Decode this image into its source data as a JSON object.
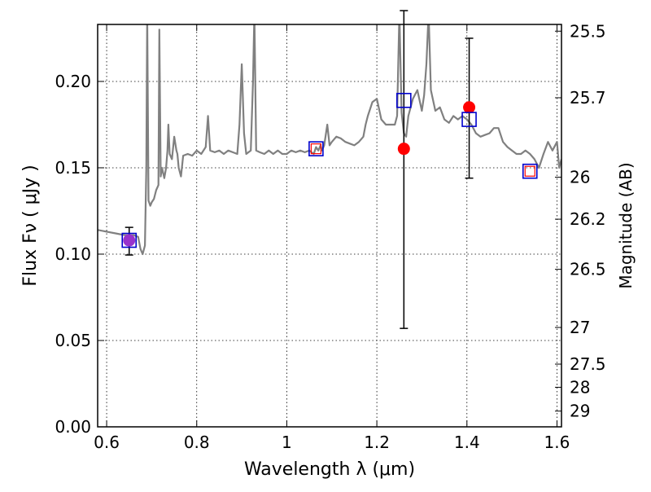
{
  "chart_data": {
    "type": "line",
    "xlabel": "Wavelength  λ (μm)",
    "ylabel": "Flux  Fν  ( μJy )",
    "y2label": "Magnitude (AB)",
    "xlim": [
      0.58,
      1.61
    ],
    "ylim": [
      0.0,
      0.233
    ],
    "grid": true,
    "x_ticks": [
      0.6,
      0.8,
      1.0,
      1.2,
      1.4,
      1.6
    ],
    "x_tick_labels": [
      "0.6",
      "0.8",
      "1",
      "1.2",
      "1.4",
      "1.6"
    ],
    "y_ticks": [
      0.0,
      0.05,
      0.1,
      0.15,
      0.2
    ],
    "y_tick_labels": [
      "0.00",
      "0.05",
      "0.10",
      "0.15",
      "0.20"
    ],
    "mag_ticks": [
      {
        "mag": 25.5,
        "label": "25.5"
      },
      {
        "mag": 25.7,
        "label": "25.7"
      },
      {
        "mag": 26.0,
        "label": "26"
      },
      {
        "mag": 26.2,
        "label": "26.2"
      },
      {
        "mag": 26.5,
        "label": "26.5"
      },
      {
        "mag": 27.0,
        "label": "27"
      },
      {
        "mag": 27.5,
        "label": "27.5"
      },
      {
        "mag": 28.0,
        "label": "28"
      },
      {
        "mag": 29.0,
        "label": "29"
      }
    ],
    "series": [
      {
        "kind": "model_spectrum",
        "color": "#808080",
        "x": [
          0.58,
          0.6,
          0.62,
          0.64,
          0.66,
          0.67,
          0.675,
          0.68,
          0.685,
          0.688,
          0.69,
          0.693,
          0.697,
          0.7,
          0.705,
          0.71,
          0.715,
          0.717,
          0.72,
          0.723,
          0.728,
          0.732,
          0.735,
          0.737,
          0.74,
          0.745,
          0.75,
          0.755,
          0.757,
          0.76,
          0.765,
          0.77,
          0.78,
          0.79,
          0.8,
          0.81,
          0.82,
          0.825,
          0.83,
          0.84,
          0.85,
          0.86,
          0.87,
          0.88,
          0.89,
          0.895,
          0.9,
          0.905,
          0.91,
          0.92,
          0.925,
          0.928,
          0.932,
          0.94,
          0.95,
          0.96,
          0.97,
          0.98,
          0.99,
          1.0,
          1.01,
          1.02,
          1.03,
          1.04,
          1.05,
          1.06,
          1.065,
          1.07,
          1.075,
          1.078,
          1.083,
          1.09,
          1.095,
          1.1,
          1.11,
          1.12,
          1.13,
          1.14,
          1.15,
          1.16,
          1.17,
          1.175,
          1.18,
          1.19,
          1.2,
          1.21,
          1.22,
          1.23,
          1.24,
          1.245,
          1.25,
          1.255,
          1.26,
          1.265,
          1.27,
          1.28,
          1.29,
          1.3,
          1.305,
          1.31,
          1.315,
          1.32,
          1.33,
          1.34,
          1.35,
          1.36,
          1.37,
          1.38,
          1.39,
          1.4,
          1.41,
          1.42,
          1.43,
          1.44,
          1.45,
          1.46,
          1.47,
          1.48,
          1.49,
          1.5,
          1.51,
          1.52,
          1.53,
          1.54,
          1.55,
          1.56,
          1.57,
          1.58,
          1.59,
          1.6,
          1.605,
          1.61
        ],
        "y": [
          0.114,
          0.113,
          0.112,
          0.111,
          0.111,
          0.11,
          0.103,
          0.1,
          0.105,
          0.15,
          0.24,
          0.131,
          0.128,
          0.13,
          0.132,
          0.137,
          0.14,
          0.23,
          0.145,
          0.15,
          0.144,
          0.15,
          0.16,
          0.175,
          0.158,
          0.155,
          0.168,
          0.16,
          0.158,
          0.15,
          0.145,
          0.157,
          0.158,
          0.157,
          0.16,
          0.158,
          0.162,
          0.18,
          0.16,
          0.159,
          0.16,
          0.158,
          0.16,
          0.159,
          0.158,
          0.175,
          0.21,
          0.17,
          0.158,
          0.16,
          0.2,
          0.24,
          0.16,
          0.159,
          0.158,
          0.16,
          0.158,
          0.16,
          0.158,
          0.158,
          0.16,
          0.159,
          0.16,
          0.159,
          0.16,
          0.158,
          0.162,
          0.16,
          0.163,
          0.16,
          0.163,
          0.175,
          0.163,
          0.165,
          0.168,
          0.167,
          0.165,
          0.164,
          0.163,
          0.165,
          0.168,
          0.175,
          0.18,
          0.188,
          0.19,
          0.178,
          0.175,
          0.175,
          0.175,
          0.18,
          0.24,
          0.182,
          0.17,
          0.168,
          0.18,
          0.19,
          0.195,
          0.183,
          0.192,
          0.21,
          0.24,
          0.195,
          0.183,
          0.185,
          0.178,
          0.176,
          0.18,
          0.178,
          0.18,
          0.178,
          0.175,
          0.17,
          0.168,
          0.169,
          0.17,
          0.173,
          0.173,
          0.165,
          0.162,
          0.16,
          0.158,
          0.158,
          0.16,
          0.158,
          0.155,
          0.15,
          0.158,
          0.165,
          0.16,
          0.165,
          0.15,
          0.155
        ]
      }
    ],
    "model_points": {
      "kind": "model_photometry",
      "marker": "open-square",
      "color": "#0000cc",
      "points": [
        {
          "x": 0.65,
          "y": 0.108
        },
        {
          "x": 1.065,
          "y": 0.161
        },
        {
          "x": 1.26,
          "y": 0.189
        },
        {
          "x": 1.405,
          "y": 0.178
        },
        {
          "x": 1.54,
          "y": 0.148
        }
      ]
    },
    "observations": {
      "kind": "observed_photometry",
      "marker": "filled-circle",
      "color": "#ff0000",
      "errorbar_color": "#000000",
      "points": [
        {
          "x": 0.65,
          "y": 0.108,
          "yerr_low": 0.0085,
          "yerr_high": 0.0075,
          "errorbar": true
        },
        {
          "x": 1.065,
          "y": 0.161,
          "errorbar": false,
          "marker": "open-square"
        },
        {
          "x": 1.26,
          "y": 0.161,
          "yerr_low": 0.104,
          "yerr_high": 0.08,
          "errorbar": true
        },
        {
          "x": 1.405,
          "y": 0.185,
          "yerr_low": 0.041,
          "yerr_high": 0.04,
          "errorbar": true
        },
        {
          "x": 1.54,
          "y": 0.148,
          "errorbar": false,
          "marker": "open-square"
        }
      ]
    }
  }
}
